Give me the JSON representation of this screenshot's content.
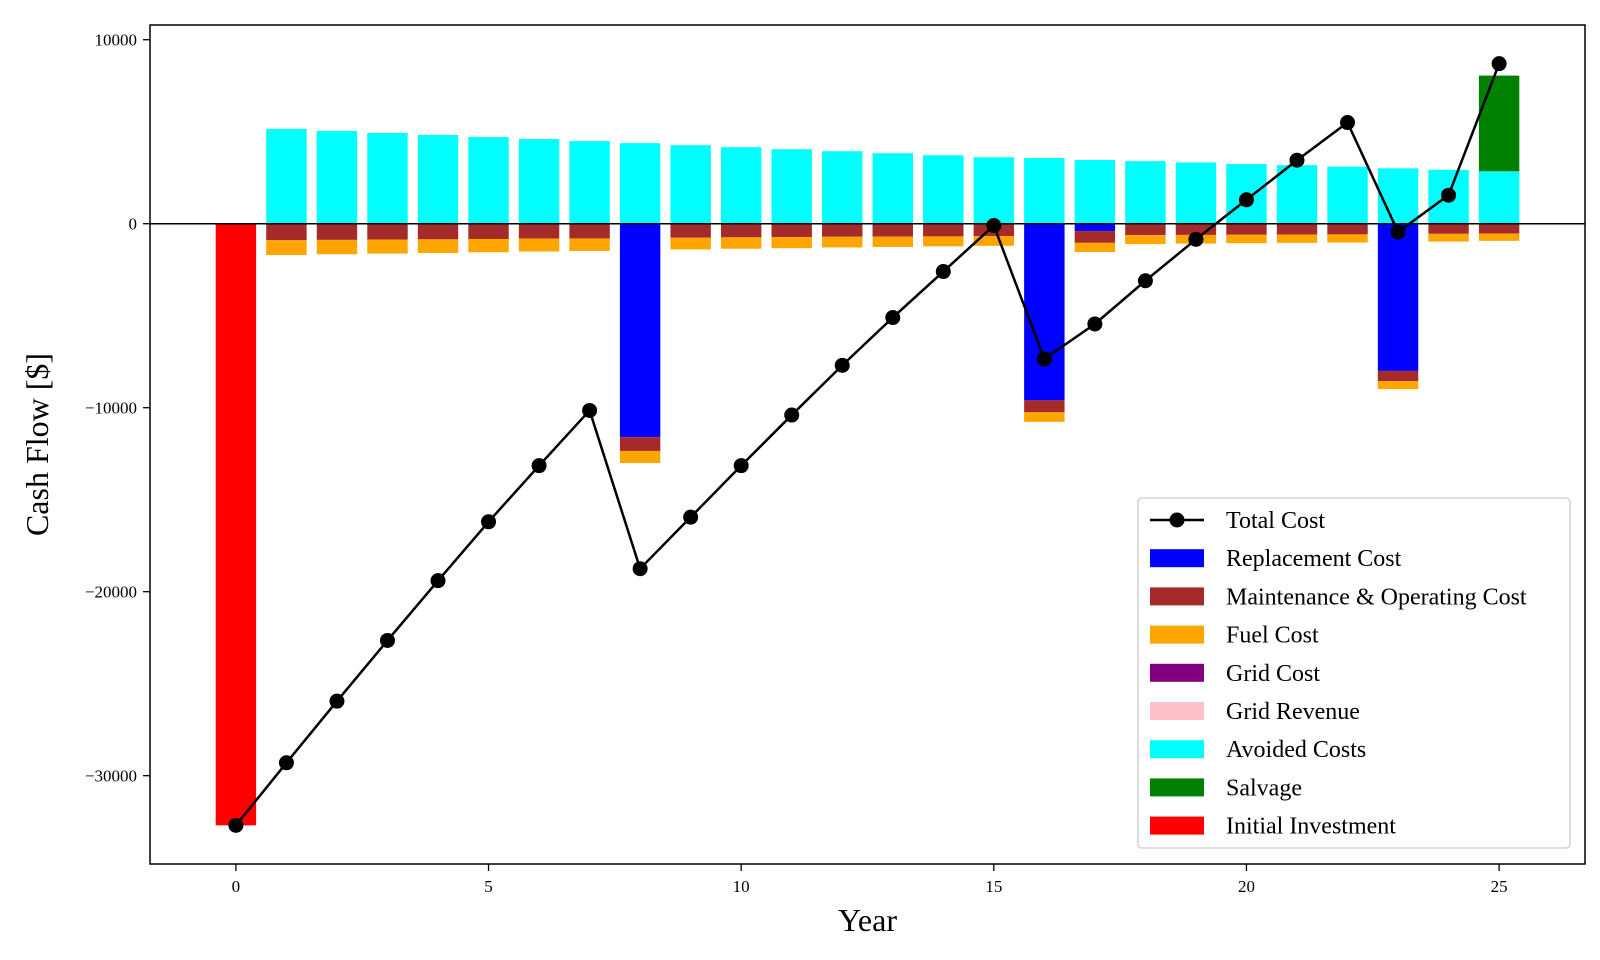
{
  "chart_data": {
    "type": "bar",
    "title": "",
    "xlabel": "Year",
    "ylabel": "Cash Flow [$]",
    "xlim": [
      -1.7,
      26.7
    ],
    "ylim": [
      -34800,
      10800
    ],
    "x_ticks": [
      0,
      5,
      10,
      15,
      20,
      25
    ],
    "y_ticks": [
      10000,
      0,
      -10000,
      -20000,
      -30000
    ],
    "grid": false,
    "legend_position": "lower-right",
    "years": [
      0,
      1,
      2,
      3,
      4,
      5,
      6,
      7,
      8,
      9,
      10,
      11,
      12,
      13,
      14,
      15,
      16,
      17,
      18,
      19,
      20,
      21,
      22,
      23,
      24,
      25
    ],
    "series": [
      {
        "name": "Replacement Cost",
        "color": "#0000ff",
        "values": [
          0,
          0,
          0,
          0,
          0,
          0,
          0,
          0,
          -11600,
          0,
          0,
          0,
          0,
          0,
          0,
          0,
          -9600,
          -400,
          0,
          0,
          0,
          0,
          0,
          -8000,
          0,
          0
        ]
      },
      {
        "name": "Maintenance & Operating Cost",
        "color": "#a52a2a",
        "values": [
          0,
          -900,
          -880,
          -860,
          -850,
          -830,
          -810,
          -800,
          -750,
          -760,
          -740,
          -730,
          -710,
          -700,
          -690,
          -670,
          -650,
          -640,
          -620,
          -610,
          -600,
          -590,
          -580,
          -560,
          -550,
          -530
        ]
      },
      {
        "name": "Fuel Cost",
        "color": "#ffa500",
        "values": [
          0,
          -800,
          -780,
          -760,
          -740,
          -720,
          -700,
          -680,
          -660,
          -640,
          -620,
          -600,
          -580,
          -560,
          -540,
          -530,
          -520,
          -500,
          -490,
          -470,
          -460,
          -450,
          -440,
          -430,
          -420,
          -400
        ]
      },
      {
        "name": "Grid Cost",
        "color": "#800080",
        "values": [
          0,
          0,
          0,
          0,
          0,
          0,
          0,
          0,
          0,
          0,
          0,
          0,
          0,
          0,
          0,
          0,
          0,
          0,
          0,
          0,
          0,
          0,
          0,
          0,
          0,
          0
        ]
      },
      {
        "name": "Grid Revenue",
        "color": "#ffc0cb",
        "values": [
          0,
          0,
          0,
          0,
          0,
          0,
          0,
          0,
          0,
          0,
          0,
          0,
          0,
          0,
          0,
          0,
          0,
          0,
          0,
          0,
          0,
          0,
          0,
          0,
          0,
          0
        ]
      },
      {
        "name": "Avoided Costs",
        "color": "#00ffff",
        "values": [
          0,
          5150,
          5040,
          4930,
          4820,
          4710,
          4600,
          4490,
          4380,
          4270,
          4160,
          4050,
          3940,
          3830,
          3720,
          3610,
          3570,
          3460,
          3400,
          3330,
          3240,
          3180,
          3100,
          3010,
          2930,
          2850
        ]
      },
      {
        "name": "Salvage",
        "color": "#008000",
        "values": [
          0,
          0,
          0,
          0,
          0,
          0,
          0,
          0,
          0,
          0,
          0,
          0,
          0,
          0,
          0,
          0,
          0,
          0,
          0,
          0,
          0,
          0,
          0,
          0,
          0,
          5200
        ]
      },
      {
        "name": "Initial Investment",
        "color": "#ff0000",
        "values": [
          -32700,
          0,
          0,
          0,
          0,
          0,
          0,
          0,
          0,
          0,
          0,
          0,
          0,
          0,
          0,
          0,
          0,
          0,
          0,
          0,
          0,
          0,
          0,
          0,
          0,
          0
        ]
      }
    ],
    "line": {
      "name": "Total Cost",
      "color": "#000000",
      "values": [
        -32700,
        -29300,
        -25950,
        -22650,
        -19400,
        -16200,
        -13150,
        -10150,
        -18750,
        -15950,
        -13150,
        -10400,
        -7700,
        -5100,
        -2600,
        -100,
        -7350,
        -5450,
        -3100,
        -850,
        1300,
        3450,
        5500,
        -450,
        1550,
        8700
      ]
    }
  }
}
